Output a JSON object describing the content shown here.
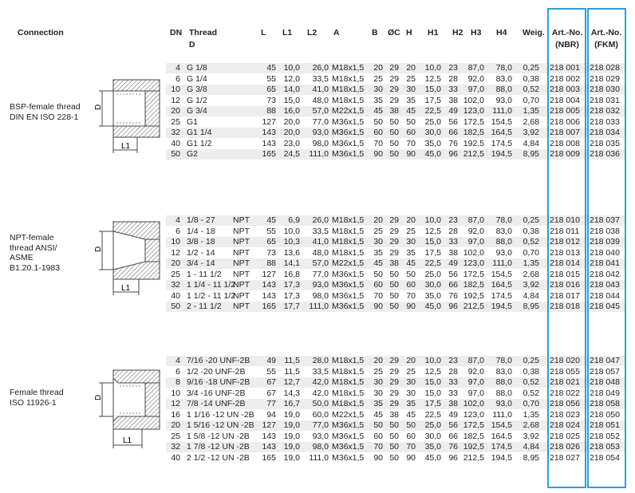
{
  "header": {
    "connection": "Connection",
    "dn": "DN",
    "thread_line1": "Thread",
    "thread_line2": "D",
    "l": "L",
    "l1": "L1",
    "l2": "L2",
    "a": "A",
    "b": "B",
    "oc": "ØC",
    "h": "H",
    "h1": "H1",
    "h2": "H2",
    "h3": "H3",
    "h4": "H4",
    "weig": "Weig.",
    "art_nbr_line1": "Art.-No.",
    "art_nbr_line2": "(NBR)",
    "art_fkm_line1": "Art.-No.",
    "art_fkm_line2": "(FKM)"
  },
  "sections": [
    {
      "label_lines": [
        "BSP-female thread",
        "DIN EN ISO 228-1"
      ],
      "drawing_labels": {
        "d": "D",
        "l1": "L1"
      },
      "rows": [
        {
          "dn": "4",
          "thread": "G 1/8",
          "l": "45",
          "l1": "10,0",
          "l2": "26,0",
          "a": "M18x1,5",
          "b": "20",
          "c": "29",
          "h": "20",
          "h1": "10,0",
          "h2": "23",
          "h3": "87,0",
          "h4": "78,0",
          "weig": "0,25",
          "nbr": "218 001",
          "fkm": "218 028"
        },
        {
          "dn": "6",
          "thread": "G 1/4",
          "l": "55",
          "l1": "12,0",
          "l2": "33,5",
          "a": "M18x1,5",
          "b": "25",
          "c": "29",
          "h": "25",
          "h1": "12,5",
          "h2": "28",
          "h3": "92,0",
          "h4": "83,0",
          "weig": "0,38",
          "nbr": "218 002",
          "fkm": "218 029"
        },
        {
          "dn": "10",
          "thread": "G 3/8",
          "l": "65",
          "l1": "14,0",
          "l2": "41,0",
          "a": "M18x1,5",
          "b": "30",
          "c": "29",
          "h": "30",
          "h1": "15,0",
          "h2": "33",
          "h3": "97,0",
          "h4": "88,0",
          "weig": "0,52",
          "nbr": "218 003",
          "fkm": "218 030"
        },
        {
          "dn": "12",
          "thread": "G 1/2",
          "l": "73",
          "l1": "15,0",
          "l2": "48,0",
          "a": "M18x1,5",
          "b": "35",
          "c": "29",
          "h": "35",
          "h1": "17,5",
          "h2": "38",
          "h3": "102,0",
          "h4": "93,0",
          "weig": "0,70",
          "nbr": "218 004",
          "fkm": "218 031"
        },
        {
          "dn": "20",
          "thread": "G 3/4",
          "l": "88",
          "l1": "16,0",
          "l2": "57,0",
          "a": "M22x1,5",
          "b": "45",
          "c": "38",
          "h": "45",
          "h1": "22,5",
          "h2": "49",
          "h3": "123,0",
          "h4": "111,0",
          "weig": "1,35",
          "nbr": "218 005",
          "fkm": "218 032"
        },
        {
          "dn": "25",
          "thread": "G1",
          "l": "127",
          "l1": "20,0",
          "l2": "77,0",
          "a": "M36x1,5",
          "b": "50",
          "c": "50",
          "h": "50",
          "h1": "25,0",
          "h2": "56",
          "h3": "172,5",
          "h4": "154,5",
          "weig": "2,68",
          "nbr": "218 006",
          "fkm": "218 033"
        },
        {
          "dn": "32",
          "thread": "G1 1/4",
          "l": "143",
          "l1": "20,0",
          "l2": "93,0",
          "a": "M36x1,5",
          "b": "60",
          "c": "50",
          "h": "60",
          "h1": "30,0",
          "h2": "66",
          "h3": "182,5",
          "h4": "164,5",
          "weig": "3,92",
          "nbr": "218 007",
          "fkm": "218 034"
        },
        {
          "dn": "40",
          "thread": "G1 1/2",
          "l": "143",
          "l1": "23,0",
          "l2": "98,0",
          "a": "M36x1,5",
          "b": "70",
          "c": "50",
          "h": "70",
          "h1": "35,0",
          "h2": "76",
          "h3": "192,5",
          "h4": "174,5",
          "weig": "4,84",
          "nbr": "218 008",
          "fkm": "218 035"
        },
        {
          "dn": "50",
          "thread": "G2",
          "l": "165",
          "l1": "24,5",
          "l2": "111,0",
          "a": "M36x1,5",
          "b": "90",
          "c": "50",
          "h": "90",
          "h1": "45,0",
          "h2": "96",
          "h3": "212,5",
          "h4": "194,5",
          "weig": "8,95",
          "nbr": "218 009",
          "fkm": "218 036"
        }
      ]
    },
    {
      "label_lines": [
        "NPT-female",
        "thread ANSI/",
        "ASME",
        "B1.20.1-1983"
      ],
      "drawing_labels": {
        "d": "D",
        "l1": "L1"
      },
      "rows": [
        {
          "dn": "4",
          "thread": "1/8 - 27",
          "suffix": "NPT",
          "l": "45",
          "l1": "6,9",
          "l2": "26,0",
          "a": "M18x1,5",
          "b": "20",
          "c": "29",
          "h": "20",
          "h1": "10,0",
          "h2": "23",
          "h3": "87,0",
          "h4": "78,0",
          "weig": "0,25",
          "nbr": "218 010",
          "fkm": "218 037"
        },
        {
          "dn": "6",
          "thread": "1/4 - 18",
          "suffix": "NPT",
          "l": "55",
          "l1": "10,0",
          "l2": "33,5",
          "a": "M18x1,5",
          "b": "25",
          "c": "29",
          "h": "25",
          "h1": "12,5",
          "h2": "28",
          "h3": "92,0",
          "h4": "83,0",
          "weig": "0,38",
          "nbr": "218 011",
          "fkm": "218 038"
        },
        {
          "dn": "10",
          "thread": "3/8 - 18",
          "suffix": "NPT",
          "l": "65",
          "l1": "10,3",
          "l2": "41,0",
          "a": "M18x1,5",
          "b": "30",
          "c": "29",
          "h": "30",
          "h1": "15,0",
          "h2": "33",
          "h3": "97,0",
          "h4": "88,0",
          "weig": "0,52",
          "nbr": "218 012",
          "fkm": "218 039"
        },
        {
          "dn": "12",
          "thread": "1/2 - 14",
          "suffix": "NPT",
          "l": "73",
          "l1": "13,6",
          "l2": "48,0",
          "a": "M18x1,5",
          "b": "35",
          "c": "29",
          "h": "35",
          "h1": "17,5",
          "h2": "38",
          "h3": "102,0",
          "h4": "93,0",
          "weig": "0,70",
          "nbr": "218 013",
          "fkm": "218 040"
        },
        {
          "dn": "20",
          "thread": "3/4 - 14",
          "suffix": "NPT",
          "l": "88",
          "l1": "14,1",
          "l2": "57,0",
          "a": "M22x1,5",
          "b": "45",
          "c": "38",
          "h": "45",
          "h1": "22,5",
          "h2": "49",
          "h3": "123,0",
          "h4": "111,0",
          "weig": "1,35",
          "nbr": "218 014",
          "fkm": "218 041"
        },
        {
          "dn": "25",
          "thread": "1 - 11 1/2",
          "suffix": "NPT",
          "l": "127",
          "l1": "16,8",
          "l2": "77,0",
          "a": "M36x1,5",
          "b": "50",
          "c": "50",
          "h": "50",
          "h1": "25,0",
          "h2": "56",
          "h3": "172,5",
          "h4": "154,5",
          "weig": "2,68",
          "nbr": "218 015",
          "fkm": "218 042"
        },
        {
          "dn": "32",
          "thread": "1 1/4 - 11 1/2",
          "suffix": "NPT",
          "l": "143",
          "l1": "17,3",
          "l2": "93,0",
          "a": "M36x1,5",
          "b": "60",
          "c": "50",
          "h": "60",
          "h1": "30,0",
          "h2": "66",
          "h3": "182,5",
          "h4": "164,5",
          "weig": "3,92",
          "nbr": "218 016",
          "fkm": "218 043"
        },
        {
          "dn": "40",
          "thread": "1 1/2 - 11 1/2",
          "suffix": "NPT",
          "l": "143",
          "l1": "17,3",
          "l2": "98,0",
          "a": "M36x1,5",
          "b": "70",
          "c": "50",
          "h": "70",
          "h1": "35,0",
          "h2": "76",
          "h3": "192,5",
          "h4": "174,5",
          "weig": "4,84",
          "nbr": "218 017",
          "fkm": "218 044"
        },
        {
          "dn": "50",
          "thread": "2 - 11 1/2",
          "suffix": "NPT",
          "l": "165",
          "l1": "17,7",
          "l2": "111,0",
          "a": "M36x1,5",
          "b": "90",
          "c": "50",
          "h": "90",
          "h1": "45,0",
          "h2": "96",
          "h3": "212,5",
          "h4": "194,5",
          "weig": "8,95",
          "nbr": "218 018",
          "fkm": "218 045"
        }
      ]
    },
    {
      "label_lines": [
        "Female thread",
        "ISO 11926-1"
      ],
      "drawing_labels": {
        "d": "D",
        "l1": "L1"
      },
      "rows": [
        {
          "dn": "4",
          "thread": "7/16 -20 UNF-2B",
          "l": "49",
          "l1": "11,5",
          "l2": "28,0",
          "a": "M18x1,5",
          "b": "20",
          "c": "29",
          "h": "20",
          "h1": "10,0",
          "h2": "23",
          "h3": "87,0",
          "h4": "78,0",
          "weig": "0,25",
          "nbr": "218 020",
          "fkm": "218 047"
        },
        {
          "dn": "6",
          "thread": "1/2 -20 UNF-2B",
          "l": "55",
          "l1": "11,5",
          "l2": "33,5",
          "a": "M18x1,5",
          "b": "25",
          "c": "29",
          "h": "25",
          "h1": "12,5",
          "h2": "28",
          "h3": "92,0",
          "h4": "83,0",
          "weig": "0,38",
          "nbr": "218 055",
          "fkm": "218 057"
        },
        {
          "dn": "8",
          "thread": "9/16 -18 UNF-2B",
          "l": "67",
          "l1": "12,7",
          "l2": "42,0",
          "a": "M18x1,5",
          "b": "30",
          "c": "29",
          "h": "30",
          "h1": "15,0",
          "h2": "33",
          "h3": "97,0",
          "h4": "88,0",
          "weig": "0,52",
          "nbr": "218 021",
          "fkm": "218 048"
        },
        {
          "dn": "10",
          "thread": "3/4 -16 UNF-2B",
          "l": "67",
          "l1": "14,3",
          "l2": "42,0",
          "a": "M18x1,5",
          "b": "30",
          "c": "29",
          "h": "30",
          "h1": "15,0",
          "h2": "33",
          "h3": "97,0",
          "h4": "88,0",
          "weig": "0,52",
          "nbr": "218 022",
          "fkm": "218 049"
        },
        {
          "dn": "12",
          "thread": "7/8 -14 UNF-2B",
          "l": "77",
          "l1": "16,7",
          "l2": "50,0",
          "a": "M18x1,5",
          "b": "35",
          "c": "29",
          "h": "35",
          "h1": "17,5",
          "h2": "38",
          "h3": "102,0",
          "h4": "93,0",
          "weig": "0,70",
          "nbr": "218 056",
          "fkm": "218 058"
        },
        {
          "dn": "16",
          "thread": "1 1/16 -12 UN -2B",
          "l": "94",
          "l1": "19,0",
          "l2": "60,0",
          "a": "M22x1,5",
          "b": "45",
          "c": "38",
          "h": "45",
          "h1": "22,5",
          "h2": "49",
          "h3": "123,0",
          "h4": "111,0",
          "weig": "1,35",
          "nbr": "218 023",
          "fkm": "218 050"
        },
        {
          "dn": "20",
          "thread": "1 5/16 -12 UN -2B",
          "l": "127",
          "l1": "19,0",
          "l2": "77,0",
          "a": "M36x1,5",
          "b": "50",
          "c": "50",
          "h": "50",
          "h1": "25,0",
          "h2": "56",
          "h3": "172,5",
          "h4": "154,5",
          "weig": "2,68",
          "nbr": "218 024",
          "fkm": "218 051"
        },
        {
          "dn": "25",
          "thread": "1 5/8 -12 UN -2B",
          "l": "143",
          "l1": "19,0",
          "l2": "93,0",
          "a": "M36x1,5",
          "b": "60",
          "c": "50",
          "h": "60",
          "h1": "30,0",
          "h2": "66",
          "h3": "182,5",
          "h4": "164,5",
          "weig": "3,92",
          "nbr": "218 025",
          "fkm": "218 052"
        },
        {
          "dn": "32",
          "thread": "1 7/8 -12 UN -2B",
          "l": "143",
          "l1": "19,0",
          "l2": "98,0",
          "a": "M36x1,5",
          "b": "70",
          "c": "50",
          "h": "70",
          "h1": "35,0",
          "h2": "76",
          "h3": "192,5",
          "h4": "174,5",
          "weig": "4,84",
          "nbr": "218 026",
          "fkm": "218 053"
        },
        {
          "dn": "40",
          "thread": "2 1/2 -12 UN -2B",
          "l": "165",
          "l1": "19,0",
          "l2": "111,0",
          "a": "M36x1,5",
          "b": "90",
          "c": "50",
          "h": "90",
          "h1": "45,0",
          "h2": "96",
          "h3": "212,5",
          "h4": "194,5",
          "weig": "8,95",
          "nbr": "218 027",
          "fkm": "218 054"
        }
      ]
    }
  ],
  "colors": {
    "highlight_border": "#2e9fd4",
    "row_shade": "#ededed",
    "drawing_hatch": "#555555"
  }
}
